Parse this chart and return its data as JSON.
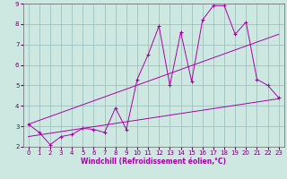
{
  "xlabel": "Windchill (Refroidissement éolien,°C)",
  "xlim": [
    -0.5,
    23.5
  ],
  "ylim": [
    2,
    9
  ],
  "xticks": [
    0,
    1,
    2,
    3,
    4,
    5,
    6,
    7,
    8,
    9,
    10,
    11,
    12,
    13,
    14,
    15,
    16,
    17,
    18,
    19,
    20,
    21,
    22,
    23
  ],
  "yticks": [
    2,
    3,
    4,
    5,
    6,
    7,
    8,
    9
  ],
  "bg_color": "#cce8e0",
  "line_color": "#aa00aa",
  "grid_color": "#99bbbb",
  "line1_x": [
    0,
    1,
    2,
    3,
    4,
    5,
    6,
    7,
    8,
    9,
    10,
    11,
    12,
    13,
    14,
    15,
    16,
    17,
    18,
    19,
    20,
    21,
    22,
    23
  ],
  "line1_y": [
    3.1,
    2.7,
    2.1,
    2.5,
    2.6,
    2.9,
    2.85,
    2.7,
    3.9,
    2.85,
    5.3,
    6.5,
    7.9,
    5.0,
    7.6,
    5.2,
    8.2,
    8.9,
    8.9,
    7.5,
    8.1,
    5.3,
    5.0,
    4.4
  ],
  "line2_x": [
    0,
    23
  ],
  "line2_y": [
    3.1,
    7.5
  ],
  "line3_x": [
    0,
    23
  ],
  "line3_y": [
    2.5,
    4.35
  ],
  "tick_fontsize": 5,
  "xlabel_fontsize": 5.5
}
